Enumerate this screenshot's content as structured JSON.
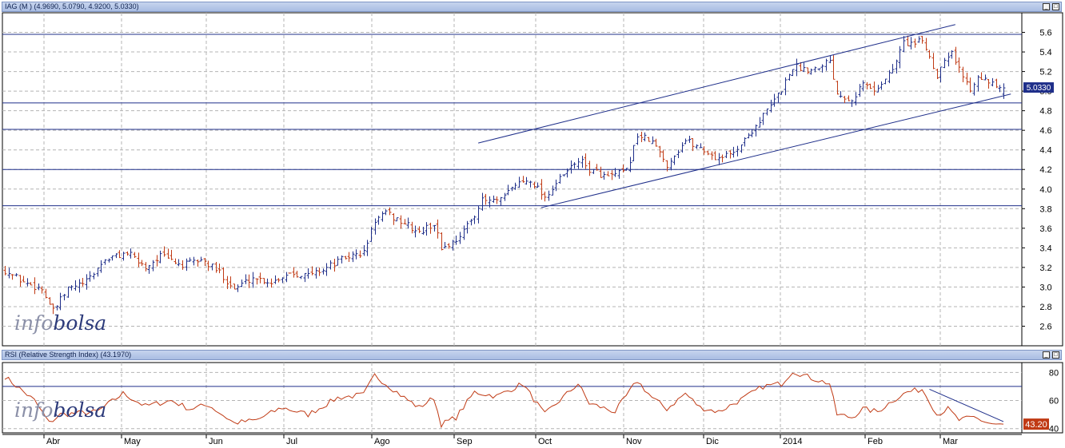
{
  "main_panel": {
    "title": "IAG (M ) (4.9690, 5.0790, 4.9200, 5.0330)",
    "last_price_label": "5.0330",
    "watermark_light": "info",
    "watermark_dark": "bolsa"
  },
  "rsi_panel": {
    "title": "RSI (Relative Strength Index) (43.1970)",
    "last_value_label": "43.20",
    "watermark_light": "info",
    "watermark_dark": "bolsa"
  },
  "colors": {
    "up": "#1f2f8a",
    "down": "#c03a14",
    "rsi_line": "#c03a14",
    "trend_line": "#1f2f8a",
    "title_bar": "#b0c2e6"
  },
  "chart_data": [
    {
      "type": "ohlc",
      "title": "IAG (M ) (4.9690, 5.0790, 4.9200, 5.0330)",
      "ylim": [
        2.4,
        5.8
      ],
      "y_ticks": [
        2.6,
        2.8,
        3.0,
        3.2,
        3.4,
        3.6,
        3.8,
        4.0,
        4.2,
        4.4,
        4.6,
        4.8,
        5.0,
        5.2,
        5.4,
        5.6
      ],
      "month_labels": [
        "Abr",
        "May",
        "Jun",
        "Jul",
        "Ago",
        "Sep",
        "Oct",
        "Nov",
        "Dic",
        "2014",
        "Feb",
        "Mar"
      ],
      "last": {
        "open": 4.969,
        "high": 5.079,
        "low": 4.92,
        "close": 5.033
      },
      "horizontal_levels": [
        5.58,
        4.88,
        4.61,
        4.2,
        3.83
      ],
      "trend_lines": [
        {
          "from": {
            "day": 128,
            "price": 4.47
          },
          "to": {
            "day": 257,
            "price": 5.68
          }
        },
        {
          "from": {
            "day": 145,
            "price": 3.81
          },
          "to": {
            "day": 272,
            "price": 4.97
          }
        }
      ],
      "close_keypoints": [
        [
          0,
          3.17
        ],
        [
          5,
          3.05
        ],
        [
          10,
          2.98
        ],
        [
          13,
          2.75
        ],
        [
          17,
          2.98
        ],
        [
          22,
          3.05
        ],
        [
          27,
          3.28
        ],
        [
          33,
          3.35
        ],
        [
          38,
          3.2
        ],
        [
          42,
          3.32
        ],
        [
          48,
          3.22
        ],
        [
          53,
          3.28
        ],
        [
          58,
          3.15
        ],
        [
          62,
          2.98
        ],
        [
          67,
          3.1
        ],
        [
          72,
          3.05
        ],
        [
          77,
          3.15
        ],
        [
          82,
          3.12
        ],
        [
          87,
          3.2
        ],
        [
          92,
          3.3
        ],
        [
          97,
          3.35
        ],
        [
          100,
          3.68
        ],
        [
          103,
          3.75
        ],
        [
          108,
          3.65
        ],
        [
          112,
          3.55
        ],
        [
          116,
          3.65
        ],
        [
          118,
          3.4
        ],
        [
          121,
          3.45
        ],
        [
          125,
          3.62
        ],
        [
          129,
          3.88
        ],
        [
          134,
          3.88
        ],
        [
          138,
          4.05
        ],
        [
          142,
          4.1
        ],
        [
          146,
          3.92
        ],
        [
          150,
          4.1
        ],
        [
          155,
          4.3
        ],
        [
          158,
          4.2
        ],
        [
          163,
          4.12
        ],
        [
          168,
          4.18
        ],
        [
          171,
          4.55
        ],
        [
          175,
          4.48
        ],
        [
          179,
          4.25
        ],
        [
          184,
          4.5
        ],
        [
          188,
          4.42
        ],
        [
          192,
          4.32
        ],
        [
          196,
          4.35
        ],
        [
          200,
          4.5
        ],
        [
          203,
          4.65
        ],
        [
          207,
          4.85
        ],
        [
          210,
          5.02
        ],
        [
          213,
          5.25
        ],
        [
          218,
          5.22
        ],
        [
          223,
          5.32
        ],
        [
          225,
          4.98
        ],
        [
          229,
          4.92
        ],
        [
          232,
          5.08
        ],
        [
          235,
          5.0
        ],
        [
          240,
          5.22
        ],
        [
          243,
          5.5
        ],
        [
          246,
          5.48
        ],
        [
          248,
          5.52
        ],
        [
          250,
          5.35
        ],
        [
          252,
          5.15
        ],
        [
          254,
          5.35
        ],
        [
          256,
          5.4
        ],
        [
          258,
          5.22
        ],
        [
          261,
          5.02
        ],
        [
          263,
          5.18
        ],
        [
          266,
          5.08
        ],
        [
          269,
          5.03
        ]
      ]
    },
    {
      "type": "line",
      "title": "RSI (Relative Strength Index) (43.1970)",
      "ylim": [
        37,
        87
      ],
      "y_ticks": [
        40,
        60,
        80
      ],
      "reference_level": 70,
      "last_value": 43.2,
      "trend_line": {
        "from": {
          "day": 250,
          "value": 68
        },
        "to": {
          "day": 270,
          "value": 45
        }
      },
      "keypoints": [
        [
          0,
          77
        ],
        [
          8,
          60
        ],
        [
          12,
          44
        ],
        [
          15,
          50
        ],
        [
          25,
          52
        ],
        [
          32,
          65
        ],
        [
          38,
          56
        ],
        [
          45,
          60
        ],
        [
          50,
          54
        ],
        [
          55,
          57
        ],
        [
          62,
          44
        ],
        [
          68,
          46
        ],
        [
          75,
          55
        ],
        [
          82,
          50
        ],
        [
          90,
          62
        ],
        [
          97,
          64
        ],
        [
          100,
          78
        ],
        [
          104,
          70
        ],
        [
          108,
          62
        ],
        [
          112,
          55
        ],
        [
          116,
          62
        ],
        [
          118,
          43
        ],
        [
          122,
          48
        ],
        [
          127,
          66
        ],
        [
          133,
          63
        ],
        [
          140,
          72
        ],
        [
          146,
          50
        ],
        [
          150,
          60
        ],
        [
          155,
          72
        ],
        [
          158,
          58
        ],
        [
          165,
          52
        ],
        [
          171,
          74
        ],
        [
          175,
          62
        ],
        [
          179,
          54
        ],
        [
          184,
          65
        ],
        [
          188,
          55
        ],
        [
          193,
          52
        ],
        [
          200,
          62
        ],
        [
          205,
          70
        ],
        [
          210,
          72
        ],
        [
          213,
          81
        ],
        [
          218,
          76
        ],
        [
          223,
          72
        ],
        [
          225,
          50
        ],
        [
          229,
          48
        ],
        [
          232,
          54
        ],
        [
          236,
          52
        ],
        [
          240,
          60
        ],
        [
          244,
          66
        ],
        [
          248,
          68
        ],
        [
          250,
          60
        ],
        [
          252,
          50
        ],
        [
          255,
          54
        ],
        [
          258,
          46
        ],
        [
          262,
          48
        ],
        [
          266,
          44
        ],
        [
          270,
          42
        ]
      ]
    }
  ]
}
